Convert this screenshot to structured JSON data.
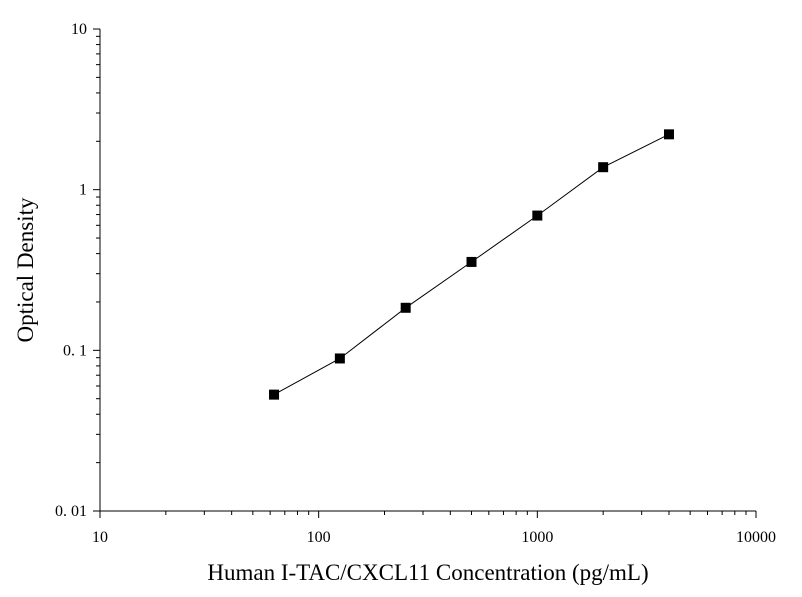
{
  "chart_data": {
    "type": "line",
    "xlabel": "Human I-TAC/CXCL11 Concentration (pg/mL)",
    "ylabel": "Optical Density",
    "xscale": "log",
    "yscale": "log",
    "xlim": [
      10,
      10000
    ],
    "ylim": [
      0.01,
      10
    ],
    "xticks": [
      10,
      100,
      1000,
      10000
    ],
    "xtick_labels": [
      "10",
      "100",
      "1000",
      "10000"
    ],
    "yticks": [
      0.01,
      0.1,
      1,
      10
    ],
    "ytick_labels": [
      "0. 01",
      "0. 1",
      "1",
      "10"
    ],
    "grid": false,
    "marker": "square",
    "series": [
      {
        "x": [
          62.5,
          125,
          250,
          500,
          1000,
          2000,
          4000
        ],
        "y": [
          0.053,
          0.089,
          0.184,
          0.355,
          0.69,
          1.38,
          2.21
        ]
      }
    ]
  }
}
